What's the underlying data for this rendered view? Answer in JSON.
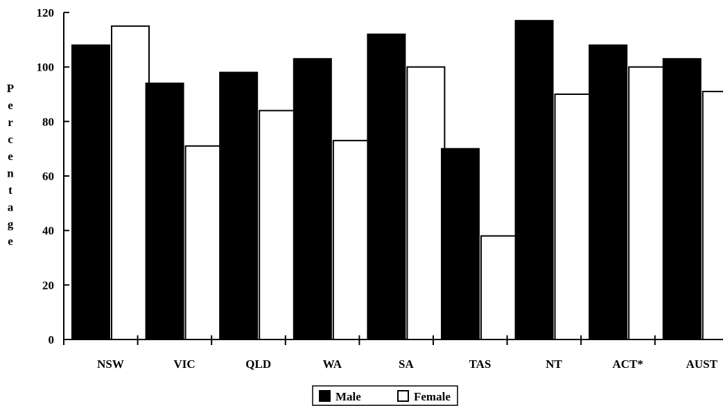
{
  "chart_data": {
    "type": "bar",
    "title": "",
    "xlabel": "",
    "ylabel": "Percentage",
    "ylim": [
      0,
      120
    ],
    "yticks": [
      0,
      20,
      40,
      60,
      80,
      100,
      120
    ],
    "grid": false,
    "legend_position": "bottom-center",
    "categories": [
      "NSW",
      "VIC",
      "QLD",
      "WA",
      "SA",
      "TAS",
      "NT",
      "ACT*",
      "AUST"
    ],
    "series": [
      {
        "name": "Male",
        "color": "#000000",
        "values": [
          108,
          94,
          98,
          103,
          112,
          70,
          117,
          108,
          103
        ]
      },
      {
        "name": "Female",
        "color": "#ffffff",
        "values": [
          115,
          71,
          84,
          73,
          100,
          38,
          90,
          100,
          91
        ]
      }
    ]
  }
}
